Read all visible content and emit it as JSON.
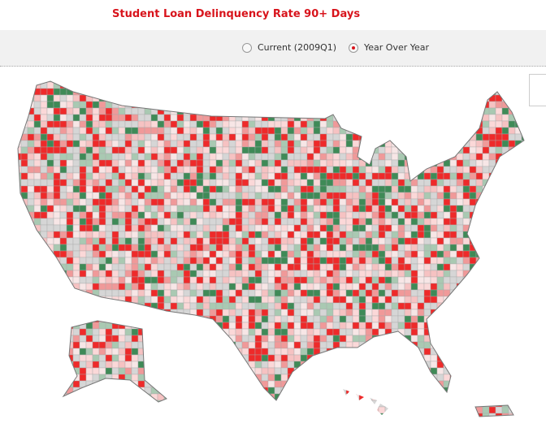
{
  "header": {
    "title": "Student Loan Delinquency Rate 90+ Days"
  },
  "controls": {
    "options": [
      {
        "label": "Current (2009Q1)",
        "selected": false
      },
      {
        "label": "Year Over Year",
        "selected": true
      }
    ]
  }
}
